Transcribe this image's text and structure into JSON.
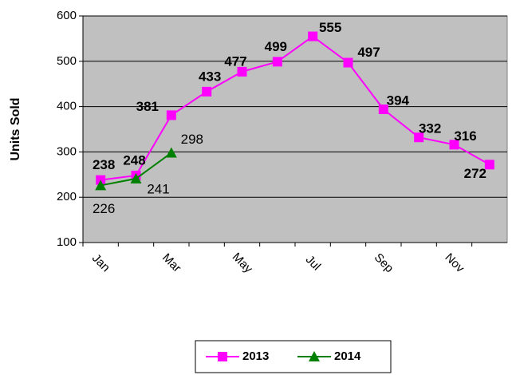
{
  "chart_data": {
    "type": "line",
    "y_label": "Units Sold",
    "categories": [
      "Jan",
      null,
      "Mar",
      null,
      "May",
      null,
      "Jul",
      null,
      "Sep",
      null,
      "Nov",
      null
    ],
    "series": [
      {
        "name": "2013",
        "color": "#ff00ff",
        "marker": "square",
        "values": [
          238,
          248,
          381,
          433,
          477,
          499,
          555,
          497,
          394,
          332,
          316,
          272
        ]
      },
      {
        "name": "2014",
        "color": "#008000",
        "marker": "triangle",
        "values": [
          226,
          241,
          298,
          null,
          null,
          null,
          null,
          null,
          null,
          null,
          null,
          null
        ]
      }
    ],
    "ylim": [
      100,
      600
    ],
    "yticks": [
      100,
      200,
      300,
      400,
      500,
      600
    ],
    "grid": true,
    "background": "#c0c0c0",
    "legend": "bottom"
  }
}
